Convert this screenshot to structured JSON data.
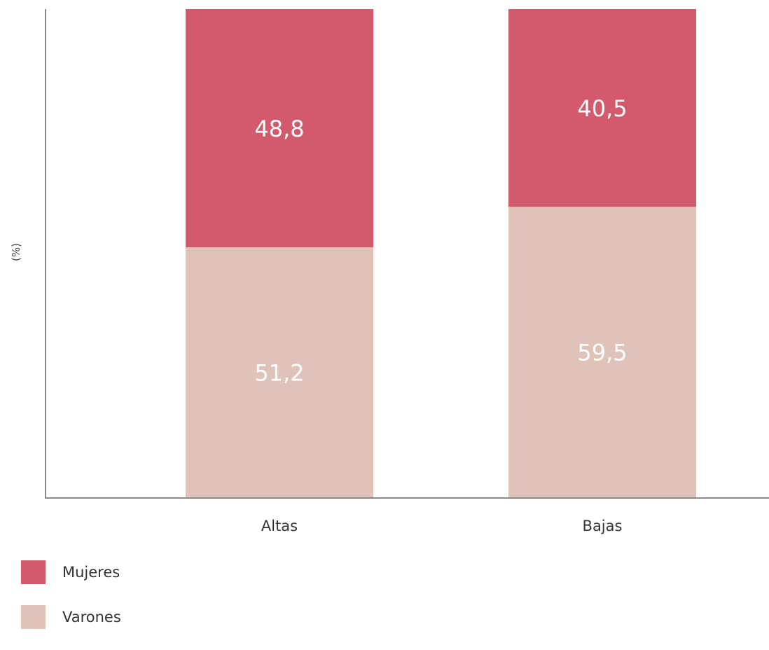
{
  "chart_data": {
    "type": "bar",
    "stacked": true,
    "categories": [
      "Altas",
      "Bajas"
    ],
    "series": [
      {
        "name": "Varones",
        "values": [
          51.2,
          59.5
        ],
        "labels": [
          "51,2",
          "59,5"
        ],
        "color": "#e0c3b8"
      },
      {
        "name": "Mujeres",
        "values": [
          48.8,
          40.5
        ],
        "labels": [
          "48,8",
          "40,5"
        ],
        "color": "#d35a6d"
      }
    ],
    "ylabel": "(%)",
    "xlabel": "",
    "ylim": [
      0,
      100
    ],
    "grid": false,
    "legend_position": "bottom-left"
  }
}
